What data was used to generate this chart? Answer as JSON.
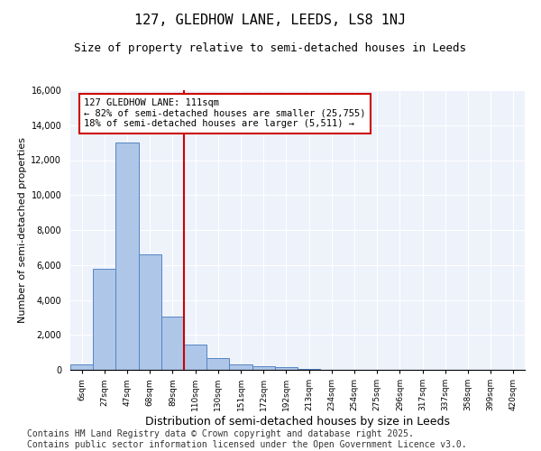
{
  "title": "127, GLEDHOW LANE, LEEDS, LS8 1NJ",
  "subtitle": "Size of property relative to semi-detached houses in Leeds",
  "xlabel": "Distribution of semi-detached houses by size in Leeds",
  "ylabel": "Number of semi-detached properties",
  "bar_labels": [
    "6sqm",
    "27sqm",
    "47sqm",
    "68sqm",
    "89sqm",
    "110sqm",
    "130sqm",
    "151sqm",
    "172sqm",
    "192sqm",
    "213sqm",
    "234sqm",
    "254sqm",
    "275sqm",
    "296sqm",
    "317sqm",
    "337sqm",
    "358sqm",
    "399sqm",
    "420sqm"
  ],
  "bar_values": [
    300,
    5800,
    13000,
    6600,
    3050,
    1450,
    680,
    330,
    200,
    150,
    50,
    0,
    0,
    0,
    0,
    0,
    0,
    0,
    0,
    0
  ],
  "bar_color": "#aec6e8",
  "bar_edge_color": "#5585c5",
  "vline_x_index": 5,
  "vline_color": "#cc0000",
  "annotation_text": "127 GLEDHOW LANE: 111sqm\n← 82% of semi-detached houses are smaller (25,755)\n18% of semi-detached houses are larger (5,511) →",
  "annotation_box_color": "#ffffff",
  "annotation_box_edge": "#cc0000",
  "ylim": [
    0,
    16000
  ],
  "yticks": [
    0,
    2000,
    4000,
    6000,
    8000,
    10000,
    12000,
    14000,
    16000
  ],
  "background_color": "#eef2fb",
  "footer_text": "Contains HM Land Registry data © Crown copyright and database right 2025.\nContains public sector information licensed under the Open Government Licence v3.0.",
  "title_fontsize": 11,
  "subtitle_fontsize": 9,
  "xlabel_fontsize": 9,
  "ylabel_fontsize": 8,
  "footer_fontsize": 7,
  "tick_fontsize": 7,
  "annot_fontsize": 7.5
}
